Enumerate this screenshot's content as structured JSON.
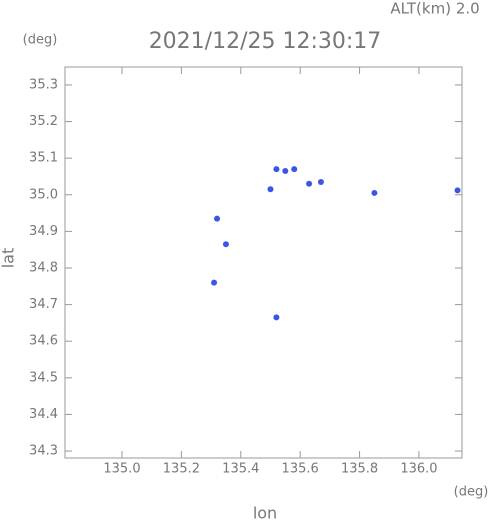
{
  "chart_data": {
    "type": "scatter",
    "title": "2021/12/25 12:30:17",
    "annotation": "ALT(km) 2.0",
    "y_unit": "(deg)",
    "x_unit": "(deg)",
    "x_label": "lon",
    "y_label": "lat",
    "color": "#3c55e8",
    "x": [
      135.55,
      135.58,
      135.52,
      135.5,
      135.85,
      136.13,
      135.32,
      135.35,
      135.31,
      135.52,
      135.63,
      135.67
    ],
    "y": [
      35.065,
      35.07,
      35.07,
      35.015,
      35.005,
      35.012,
      34.935,
      34.865,
      34.76,
      34.665,
      35.03,
      35.035
    ],
    "xlim": [
      134.808,
      136.145
    ],
    "ylim": [
      34.281,
      35.349
    ],
    "xticks": [
      {
        "value": 135.0,
        "label": "135.0"
      },
      135.2,
      135.4,
      135.6,
      135.8,
      {
        "value": 136.0,
        "label": "136.0"
      }
    ],
    "yticks": [
      34.3,
      34.4,
      34.5,
      34.6,
      34.7,
      34.8,
      34.9,
      {
        "value": 35.0,
        "label": "35.0"
      },
      35.1,
      35.2,
      35.3
    ],
    "grid": false
  }
}
